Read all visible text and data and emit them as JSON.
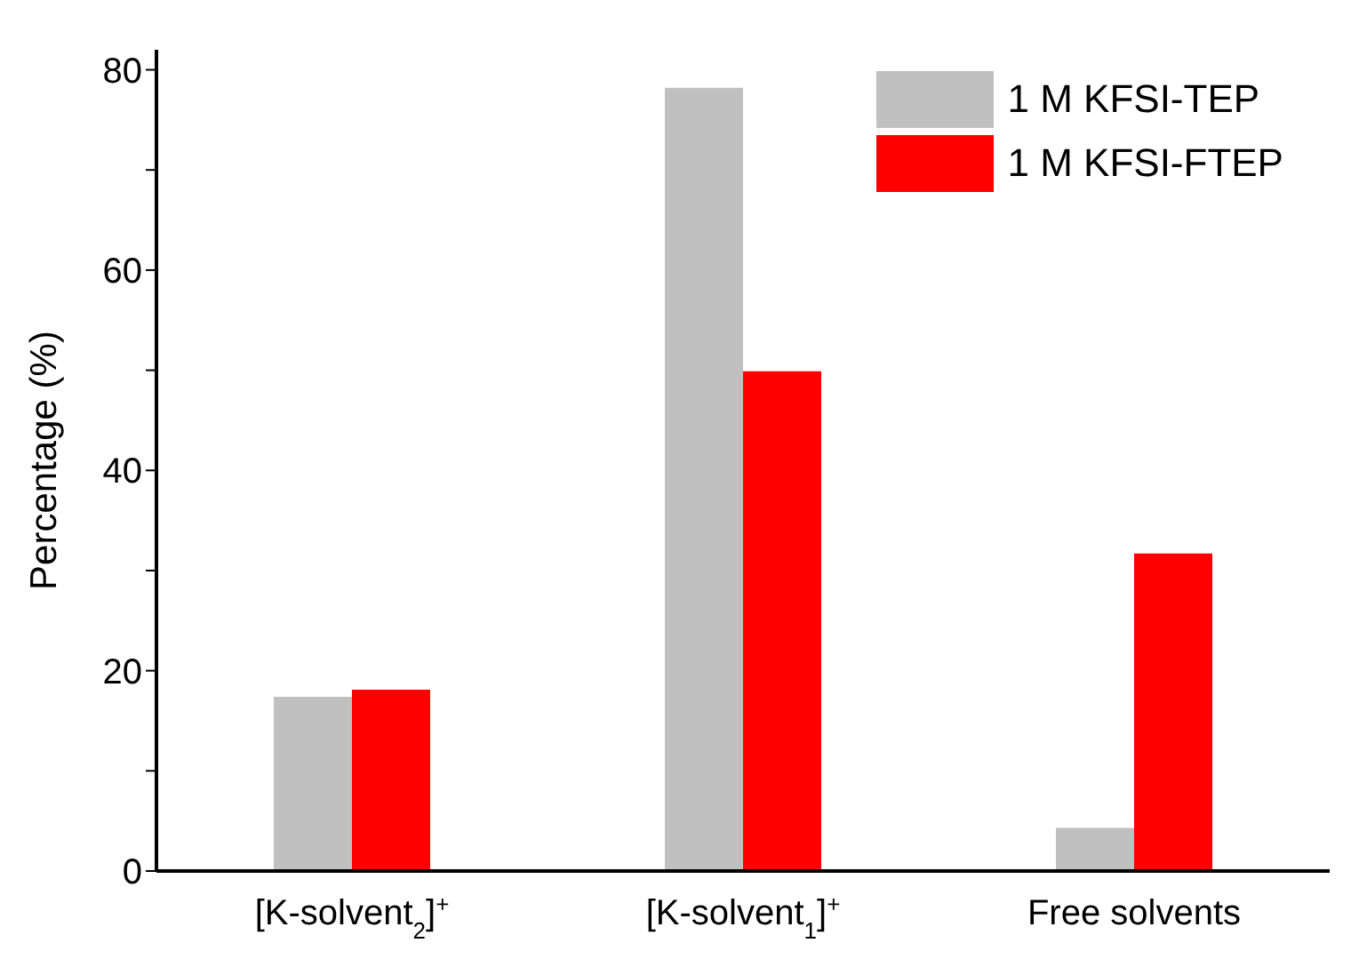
{
  "chart_data": {
    "type": "bar",
    "ylabel": "Percentage (%)",
    "categories": [
      "[K-solvent$_{2}$]$^{+}$",
      "[K-solvent$_{1}$]$^{+}$",
      "Free solvents"
    ],
    "series": [
      {
        "name": "1 M KFSI-TEP",
        "color": "#c0c0c0",
        "values": [
          17.4,
          78.2,
          4.3
        ]
      },
      {
        "name": "1 M KFSI-FTEP",
        "color": "#ff0000",
        "values": [
          18.1,
          49.9,
          31.7
        ]
      }
    ],
    "ylim": [
      0,
      82
    ],
    "yticks": [
      0,
      {
        "value": 10,
        "label": null
      },
      20,
      {
        "value": 30,
        "label": null
      },
      40,
      {
        "value": 50,
        "label": null
      },
      60,
      {
        "value": 70,
        "label": null
      },
      80
    ],
    "grid": false,
    "legend": "top right"
  }
}
